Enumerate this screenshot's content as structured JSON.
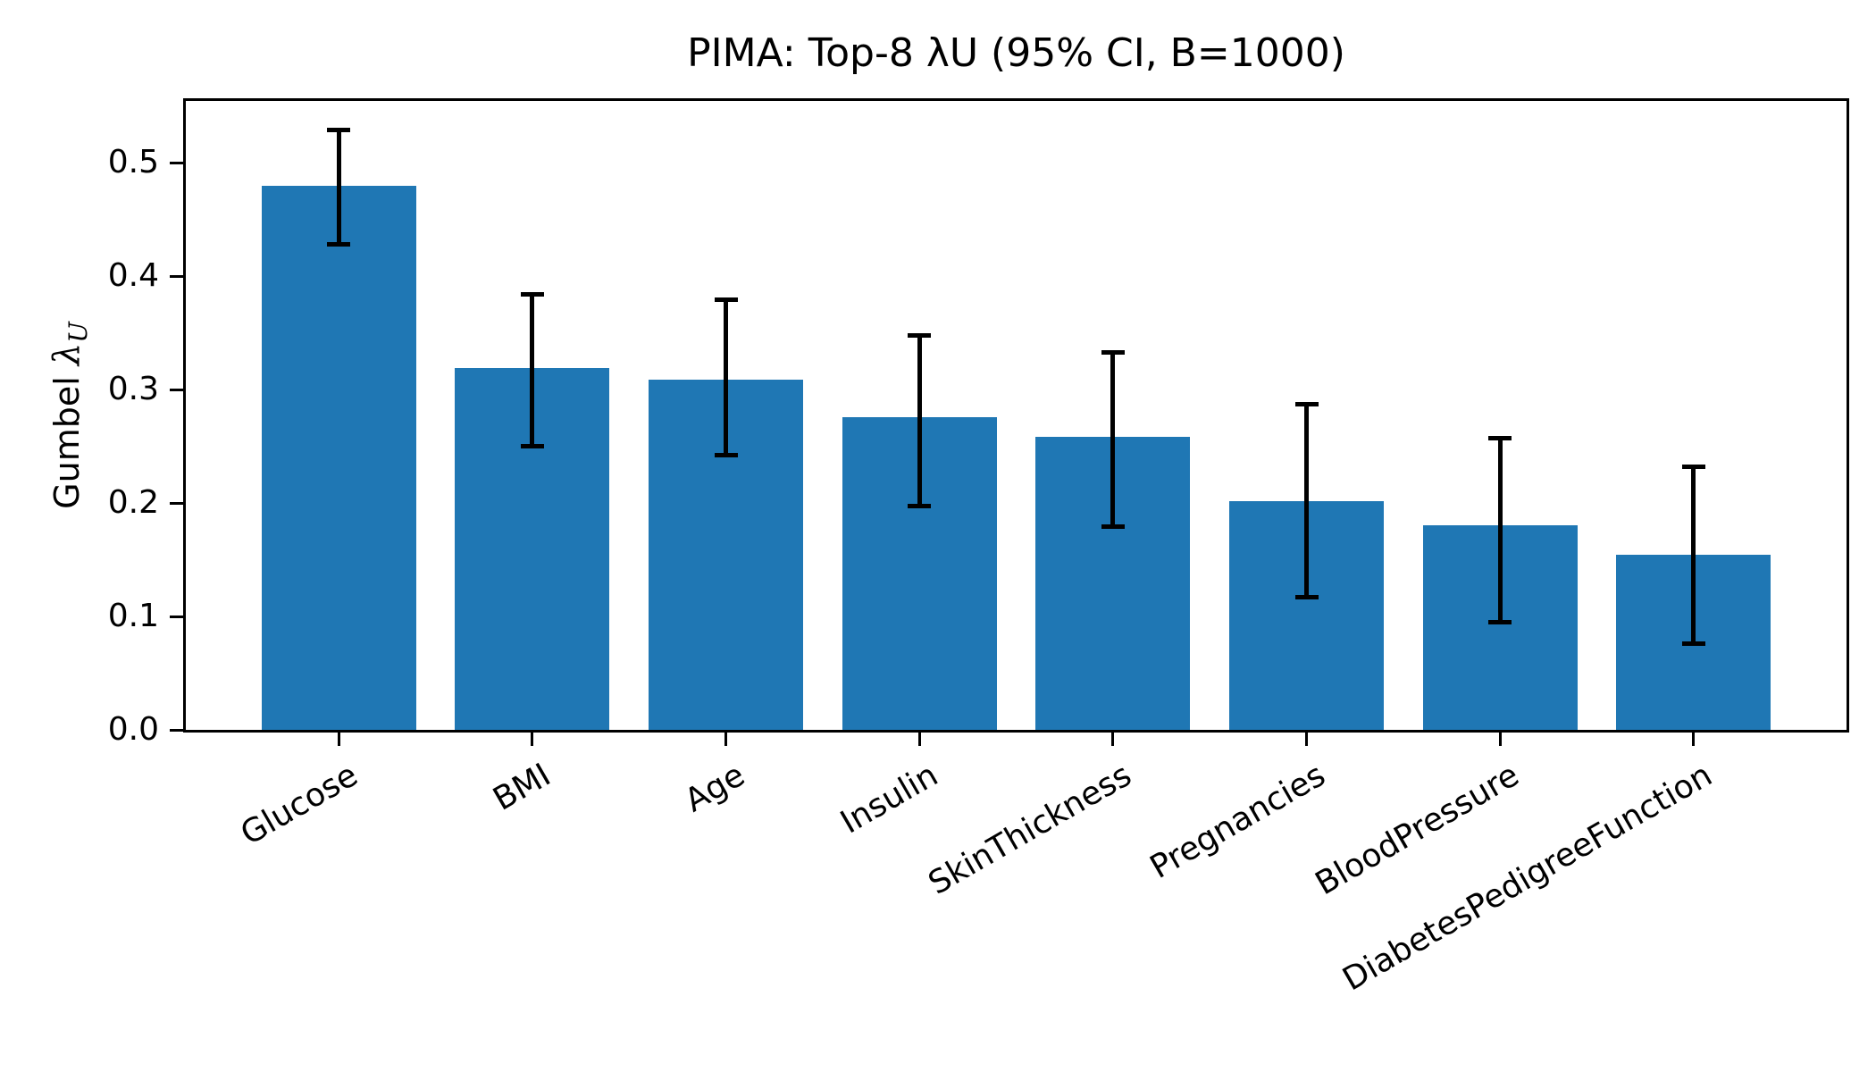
{
  "chart_data": {
    "type": "bar",
    "title": "PIMA: Top-8 λU (95% CI, B=1000)",
    "ylabel": {
      "prefix": "Gumbel ",
      "symbol": "λ",
      "subscript": "U"
    },
    "xlabel": "",
    "categories": [
      "Glucose",
      "BMI",
      "Age",
      "Insulin",
      "SkinThickness",
      "Pregnancies",
      "BloodPressure",
      "DiabetesPedigreeFunction"
    ],
    "values": [
      0.48,
      0.319,
      0.309,
      0.276,
      0.258,
      0.202,
      0.18,
      0.154
    ],
    "ci_low": [
      0.428,
      0.25,
      0.242,
      0.197,
      0.179,
      0.117,
      0.095,
      0.076
    ],
    "ci_high": [
      0.529,
      0.384,
      0.379,
      0.348,
      0.333,
      0.287,
      0.257,
      0.232
    ],
    "ytick_labels": [
      "0.0",
      "0.1",
      "0.2",
      "0.3",
      "0.4",
      "0.5"
    ],
    "ytick_values": [
      0.0,
      0.1,
      0.2,
      0.3,
      0.4,
      0.5
    ],
    "ylim": [
      0,
      0.5545
    ],
    "bar_color": "#1f77b4",
    "error_color": "#000000",
    "xtick_rotation_deg": 30,
    "grid": false,
    "legend": null
  }
}
